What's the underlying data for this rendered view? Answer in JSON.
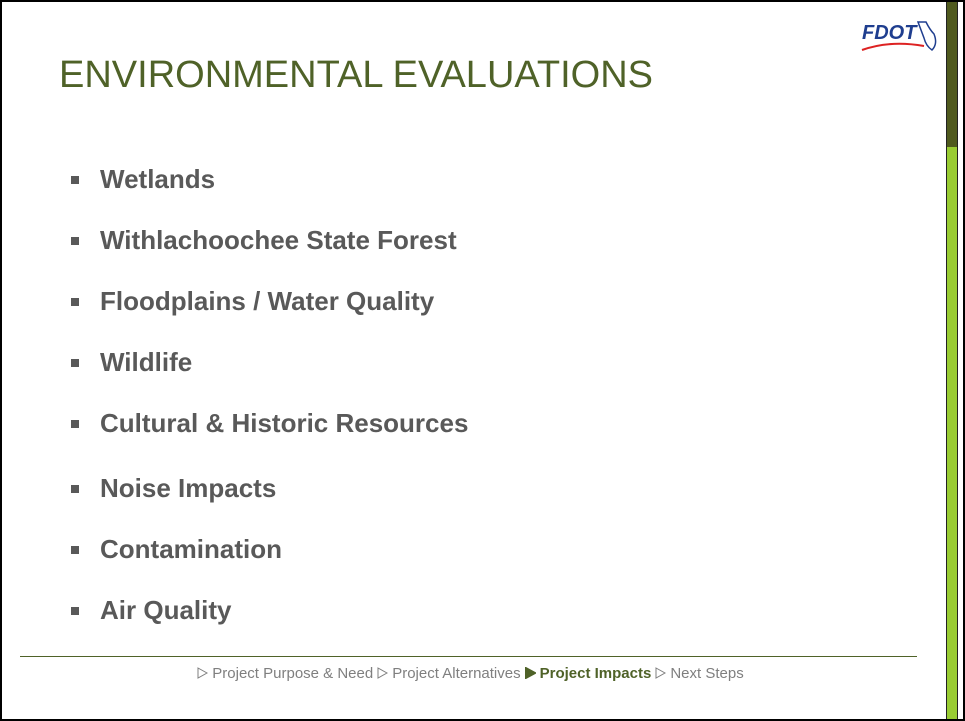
{
  "logo": "FDOT",
  "title": "ENVIRONMENTAL EVALUATIONS",
  "bullets": [
    "Wetlands",
    "Withlachoochee State Forest",
    "Floodplains / Water Quality",
    "Wildlife",
    "Cultural & Historic Resources",
    "Noise Impacts",
    "Contamination",
    "Air Quality"
  ],
  "footer": {
    "items": [
      "Project Purpose & Need",
      "Project Alternatives",
      "Project Impacts",
      "Next Steps"
    ],
    "current": 2
  }
}
